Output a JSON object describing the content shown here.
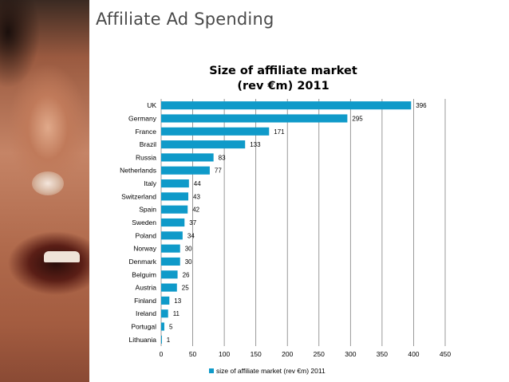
{
  "slide": {
    "title": "Affiliate Ad Spending"
  },
  "chart_data": {
    "type": "bar",
    "orientation": "horizontal",
    "title_lines": [
      "Size of affiliate market",
      "(rev €m) 2011"
    ],
    "categories": [
      "UK",
      "Germany",
      "France",
      "Brazil",
      "Russia",
      "Netherlands",
      "Italy",
      "Switzerland",
      "Spain",
      "Sweden",
      "Poland",
      "Norway",
      "Denmark",
      "Belguim",
      "Austria",
      "Finland",
      "Ireland",
      "Portugal",
      "Lithuania"
    ],
    "series": [
      {
        "name": "size of affiliate market (rev €m) 2011",
        "values": [
          396,
          295,
          171,
          133,
          83,
          77,
          44,
          43,
          42,
          37,
          34,
          30,
          30,
          26,
          25,
          13,
          11,
          5,
          1
        ]
      }
    ],
    "xlim": [
      0,
      450
    ],
    "xticks": [
      0,
      50,
      100,
      150,
      200,
      250,
      300,
      350,
      400,
      450
    ],
    "grid": true,
    "legend_position": "bottom",
    "bar_color": "#0f9ac9"
  }
}
